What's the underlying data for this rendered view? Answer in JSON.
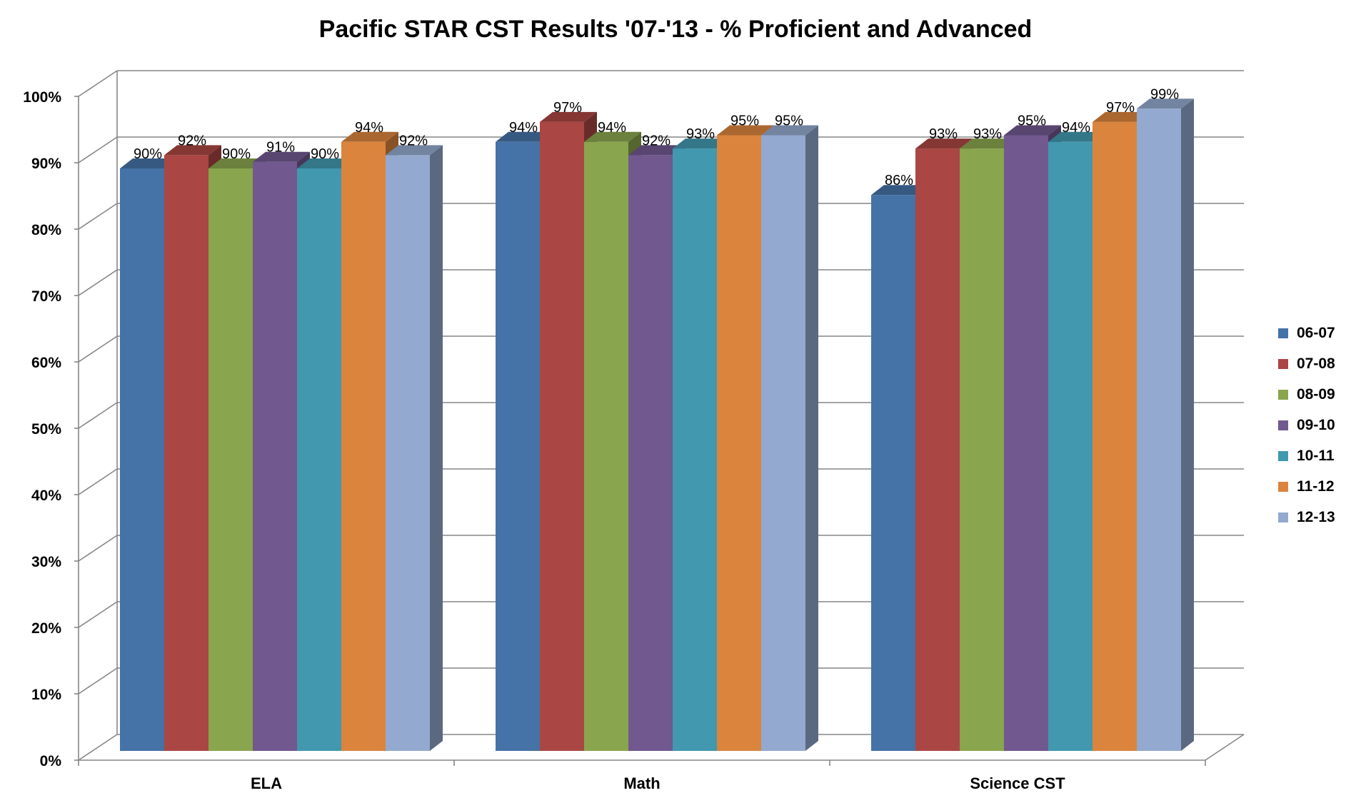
{
  "chart_data": {
    "type": "bar",
    "title": "Pacific STAR CST Results '07-'13 - % Proficient and Advanced",
    "categories": [
      "ELA",
      "Math",
      "Science CST"
    ],
    "series": [
      {
        "name": "06-07",
        "color": "#4572A7",
        "values": [
          90,
          94,
          86
        ]
      },
      {
        "name": "07-08",
        "color": "#AA4643",
        "values": [
          92,
          97,
          93
        ]
      },
      {
        "name": "08-09",
        "color": "#89A54E",
        "values": [
          90,
          94,
          93
        ]
      },
      {
        "name": "09-10",
        "color": "#71588F",
        "values": [
          91,
          92,
          95
        ]
      },
      {
        "name": "10-11",
        "color": "#4198AF",
        "values": [
          90,
          93,
          94
        ]
      },
      {
        "name": "11-12",
        "color": "#DB843D",
        "values": [
          94,
          95,
          97
        ]
      },
      {
        "name": "12-13",
        "color": "#93A9CF",
        "values": [
          92,
          95,
          99
        ]
      }
    ],
    "y_ticks": [
      "0%",
      "10%",
      "20%",
      "30%",
      "40%",
      "50%",
      "60%",
      "70%",
      "80%",
      "90%",
      "100%"
    ],
    "ylim": [
      0,
      100
    ],
    "value_suffix": "%",
    "grid": true,
    "legend": "right",
    "three_d": true
  }
}
